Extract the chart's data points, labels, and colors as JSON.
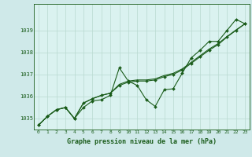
{
  "xlabel": "Graphe pression niveau de la mer (hPa)",
  "bg_color": "#cfe9e9",
  "plot_bg_color": "#daf2f0",
  "line_color": "#1a5c1a",
  "grid_color": "#b8d9d0",
  "x_values": [
    0,
    1,
    2,
    3,
    4,
    5,
    6,
    7,
    8,
    9,
    10,
    11,
    12,
    13,
    14,
    15,
    16,
    17,
    18,
    19,
    20,
    21,
    22,
    23
  ],
  "y_series1": [
    1034.7,
    1035.1,
    1035.4,
    1035.5,
    1035.0,
    1035.5,
    1035.8,
    1035.85,
    1036.05,
    1037.3,
    1036.7,
    1036.5,
    1035.85,
    1035.55,
    1036.3,
    1036.35,
    1037.05,
    1037.75,
    1038.1,
    1038.5,
    1038.5,
    1039.0,
    1039.5,
    1039.3
  ],
  "y_series2": [
    1034.7,
    1035.1,
    1035.4,
    1035.5,
    1035.0,
    1035.7,
    1035.9,
    1036.05,
    1036.15,
    1036.5,
    1036.65,
    1036.7,
    1036.7,
    1036.75,
    1036.9,
    1037.0,
    1037.2,
    1037.5,
    1037.8,
    1038.1,
    1038.35,
    1038.7,
    1039.0,
    1039.3
  ],
  "y_series3": [
    1034.7,
    1035.1,
    1035.4,
    1035.5,
    1035.0,
    1035.7,
    1035.9,
    1036.05,
    1036.15,
    1036.55,
    1036.7,
    1036.75,
    1036.75,
    1036.8,
    1036.95,
    1037.05,
    1037.25,
    1037.55,
    1037.85,
    1038.15,
    1038.4,
    1038.72,
    1039.02,
    1039.3
  ],
  "ylim_min": 1034.5,
  "ylim_max": 1040.2,
  "yticks": [
    1035,
    1036,
    1037,
    1038,
    1039
  ],
  "xticks": [
    0,
    1,
    2,
    3,
    4,
    5,
    6,
    7,
    8,
    9,
    10,
    11,
    12,
    13,
    14,
    15,
    16,
    17,
    18,
    19,
    20,
    21,
    22,
    23
  ],
  "marker": "D",
  "marker_size": 2.0,
  "linewidth": 0.8
}
